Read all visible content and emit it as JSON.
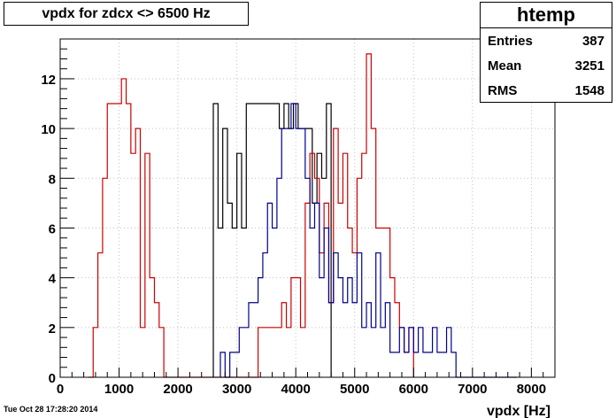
{
  "title": "vpdx for zdcx <> 6500 Hz",
  "stats": {
    "name": "htemp",
    "rows": [
      {
        "label": "Entries",
        "value": "387"
      },
      {
        "label": "Mean",
        "value": "3251"
      },
      {
        "label": "RMS",
        "value": "1548"
      }
    ]
  },
  "datestamp": "Tue Oct 28 17:28:20 2014",
  "chart_data": {
    "type": "histogram-step",
    "title": "vpdx for zdcx <> 6500 Hz",
    "xlabel": "vpdx [Hz]",
    "ylabel": "",
    "xlim": [
      0,
      8400
    ],
    "ylim": [
      0,
      13.6
    ],
    "x_ticks": [
      0,
      1000,
      2000,
      3000,
      4000,
      5000,
      6000,
      7000,
      8000
    ],
    "y_ticks": [
      0,
      2,
      4,
      6,
      8,
      10,
      12
    ],
    "grid": true,
    "bin_width": 80,
    "series": [
      {
        "color": "#000000",
        "x_start": 2600,
        "values": [
          11,
          6,
          10,
          7,
          6,
          9,
          6,
          11,
          11,
          11,
          11,
          11,
          11,
          11,
          10,
          11,
          10,
          11,
          10,
          10,
          10,
          7,
          9,
          8,
          11
        ]
      },
      {
        "color": "#cc0000",
        "x_start": 480,
        "values": [
          0,
          2,
          5,
          8,
          11,
          11,
          11,
          12,
          11,
          9,
          10,
          2,
          9,
          4,
          3,
          2,
          0,
          0,
          0,
          0,
          0,
          0,
          0,
          0,
          0,
          0,
          0,
          0,
          0,
          0,
          0,
          0,
          0,
          0,
          0,
          0,
          2,
          2,
          2,
          2,
          2,
          3,
          2,
          4,
          4,
          2,
          7,
          9,
          8,
          5,
          7,
          3,
          10,
          7,
          9,
          6,
          5,
          8,
          9,
          13,
          10,
          6,
          6,
          6,
          4,
          3,
          2,
          1,
          2
        ]
      },
      {
        "color": "#00008b",
        "x_start": 2720,
        "values": [
          1,
          0,
          1,
          1,
          2,
          2,
          3,
          3,
          4,
          5,
          7,
          6,
          8,
          10,
          10,
          11,
          10,
          10,
          8,
          6,
          7,
          4,
          6,
          3,
          5,
          4,
          3,
          4,
          3,
          5,
          2,
          3,
          2,
          5,
          2,
          3,
          1,
          1,
          2,
          1,
          2,
          1,
          2,
          1,
          1,
          2,
          1,
          1,
          2,
          1,
          0,
          0,
          0,
          0,
          0,
          0,
          0,
          0,
          0,
          0,
          0,
          0,
          0
        ]
      }
    ]
  }
}
